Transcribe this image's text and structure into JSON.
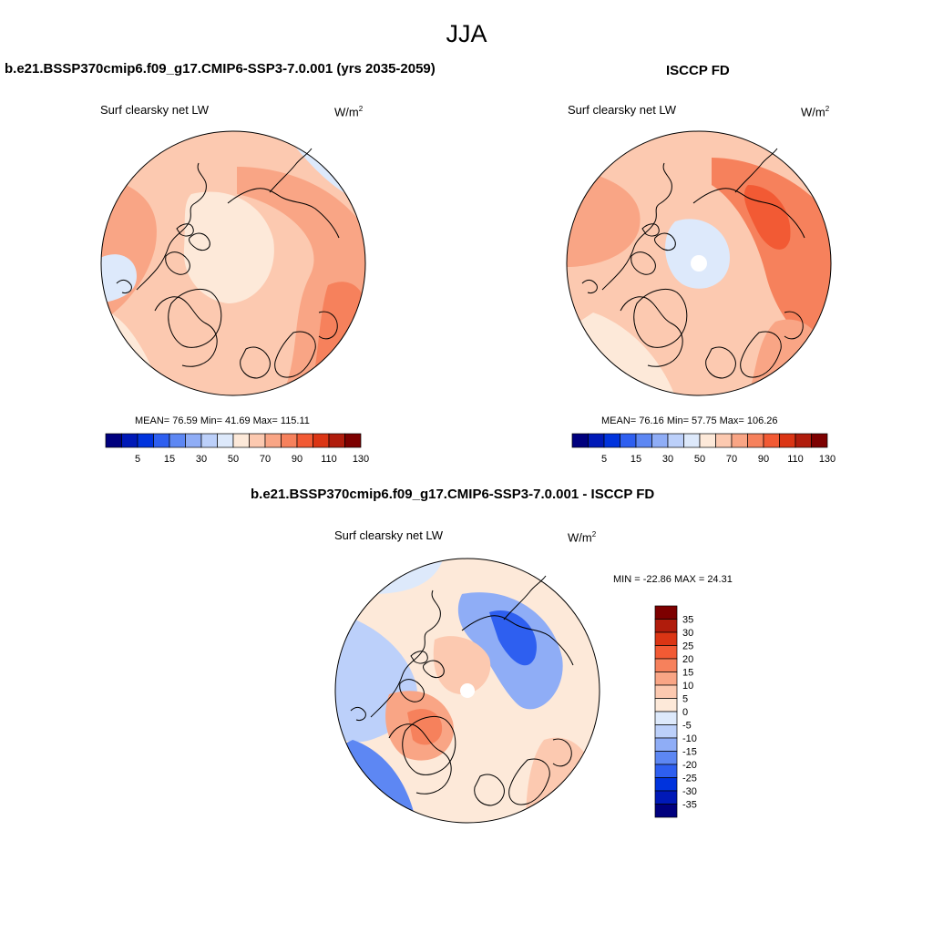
{
  "main_title": "JJA",
  "panels": [
    {
      "title": "b.e21.BSSP370cmip6.f09_g17.CMIP6-SSP3-7.0.001 (yrs 2035-2059)",
      "field": "Surf clearsky net LW",
      "units_base": "W/m",
      "units_exp": "2",
      "stats": "MEAN=  76.59  Min=  41.69  Max= 115.11",
      "colorbar_labels": [
        "5",
        "15",
        "30",
        "50",
        "70",
        "90",
        "110",
        "130"
      ]
    },
    {
      "title": "ISCCP FD",
      "field": "Surf clearsky net LW",
      "units_base": "W/m",
      "units_exp": "2",
      "stats": "MEAN=  76.16  Min=  57.75  Max= 106.26",
      "colorbar_labels": [
        "5",
        "15",
        "30",
        "50",
        "70",
        "90",
        "110",
        "130"
      ]
    },
    {
      "title": "b.e21.BSSP370cmip6.f09_g17.CMIP6-SSP3-7.0.001 - ISCCP FD",
      "field": "Surf clearsky net LW",
      "units_base": "W/m",
      "units_exp": "2",
      "stats": "MIN = -22.86 MAX =  24.31",
      "colorbar_labels": [
        "35",
        "30",
        "25",
        "20",
        "15",
        "10",
        "5",
        "0",
        "-5",
        "-10",
        "-15",
        "-20",
        "-25",
        "-30",
        "-35"
      ]
    }
  ],
  "colors": {
    "scale": [
      "#00007e",
      "#0019b7",
      "#0033dd",
      "#2e5ff0",
      "#5d87f3",
      "#8fadf6",
      "#bcd0fa",
      "#dde9fb",
      "#fde9d9",
      "#fcc9b0",
      "#f9a585",
      "#f6815c",
      "#f25a34",
      "#db3514",
      "#b01c0c",
      "#7d0000"
    ],
    "coast": "#000000"
  }
}
